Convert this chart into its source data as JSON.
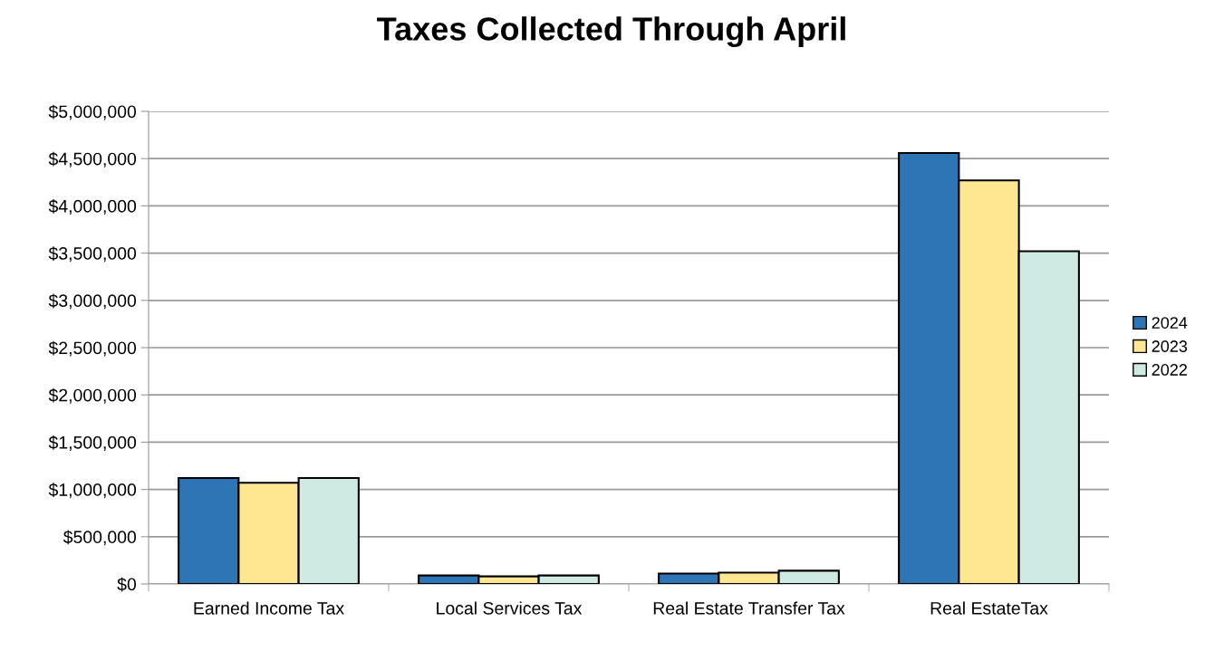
{
  "chart_data": {
    "type": "bar",
    "title": "Taxes Collected Through April",
    "categories": [
      "Earned Income Tax",
      "Local Services Tax",
      "Real Estate Transfer Tax",
      "Real EstateTax"
    ],
    "series": [
      {
        "name": "2024",
        "color": "#2e75b6",
        "values": [
          1120000,
          90000,
          110000,
          4560000
        ]
      },
      {
        "name": "2023",
        "color": "#ffe792",
        "values": [
          1070000,
          80000,
          120000,
          4270000
        ]
      },
      {
        "name": "2022",
        "color": "#cfeae2",
        "values": [
          1120000,
          90000,
          140000,
          3520000
        ]
      }
    ],
    "ylim": [
      0,
      5000000
    ],
    "yticks": [
      {
        "value": 0,
        "label": "$0"
      },
      {
        "value": 500000,
        "label": "$500,000"
      },
      {
        "value": 1000000,
        "label": "$1,000,000"
      },
      {
        "value": 1500000,
        "label": "$1,500,000"
      },
      {
        "value": 2000000,
        "label": "$2,000,000"
      },
      {
        "value": 2500000,
        "label": "$2,500,000"
      },
      {
        "value": 3000000,
        "label": "$3,000,000"
      },
      {
        "value": 3500000,
        "label": "$3,500,000"
      },
      {
        "value": 4000000,
        "label": "$4,000,000"
      },
      {
        "value": 4500000,
        "label": "$4,500,000"
      },
      {
        "value": 5000000,
        "label": "$5,000,000"
      }
    ],
    "grid": "y",
    "legend": "right"
  }
}
